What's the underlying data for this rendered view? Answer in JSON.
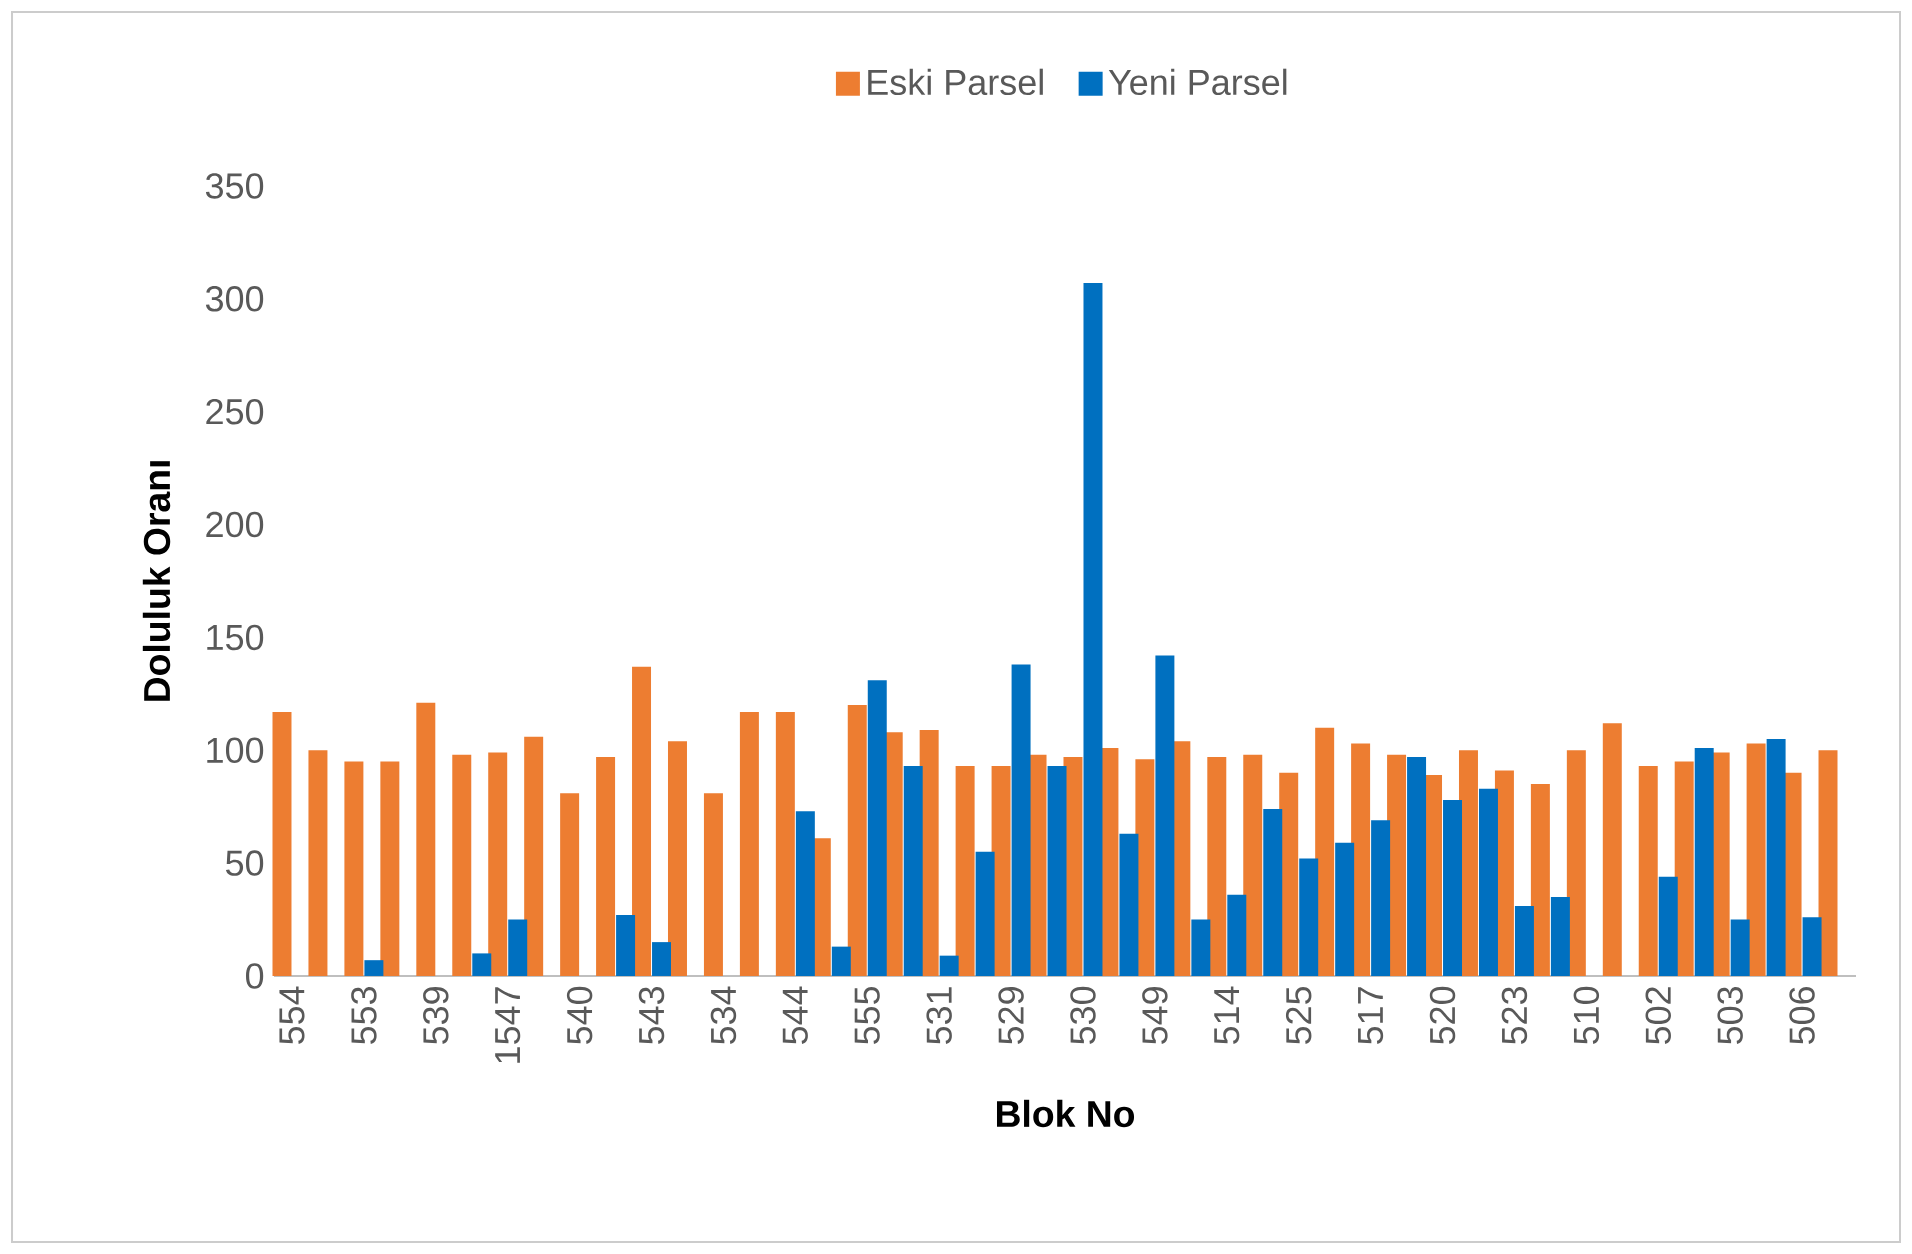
{
  "chart_data": {
    "type": "bar",
    "xlabel": "Blok No",
    "ylabel": "Doluluk Oranı",
    "categories": [
      "554",
      null,
      "553",
      null,
      "539",
      null,
      "1547",
      null,
      "540",
      null,
      "543",
      null,
      "534",
      null,
      "544",
      null,
      "555",
      null,
      "531",
      null,
      "529",
      null,
      "530",
      null,
      "549",
      null,
      "514",
      null,
      "525",
      null,
      "517",
      null,
      "520",
      null,
      "523",
      null,
      "510",
      null,
      "502",
      null,
      "503",
      null,
      "506",
      null
    ],
    "series": [
      {
        "name": "Eski Parsel",
        "color": "#ed7d31",
        "values": [
          117,
          100,
          95,
          95,
          121,
          98,
          99,
          106,
          81,
          97,
          137,
          104,
          81,
          117,
          117,
          61,
          120,
          108,
          109,
          93,
          93,
          98,
          97,
          101,
          96,
          104,
          97,
          98,
          90,
          110,
          103,
          98,
          89,
          100,
          91,
          85,
          100,
          112,
          93,
          95,
          99,
          103,
          90,
          100
        ]
      },
      {
        "name": "Yeni Parsel",
        "color": "#0070c0",
        "values": [
          null,
          null,
          7,
          null,
          null,
          10,
          25,
          null,
          null,
          27,
          15,
          null,
          null,
          null,
          73,
          13,
          131,
          93,
          9,
          55,
          138,
          93,
          307,
          63,
          142,
          25,
          36,
          74,
          52,
          59,
          69,
          97,
          78,
          83,
          31,
          35,
          null,
          null,
          44,
          101,
          25,
          105,
          26,
          null
        ]
      }
    ],
    "ylim": [
      0,
      350
    ],
    "yticks": [
      0,
      50,
      100,
      150,
      200,
      250,
      300,
      350
    ],
    "legend": "top",
    "grid": false
  }
}
